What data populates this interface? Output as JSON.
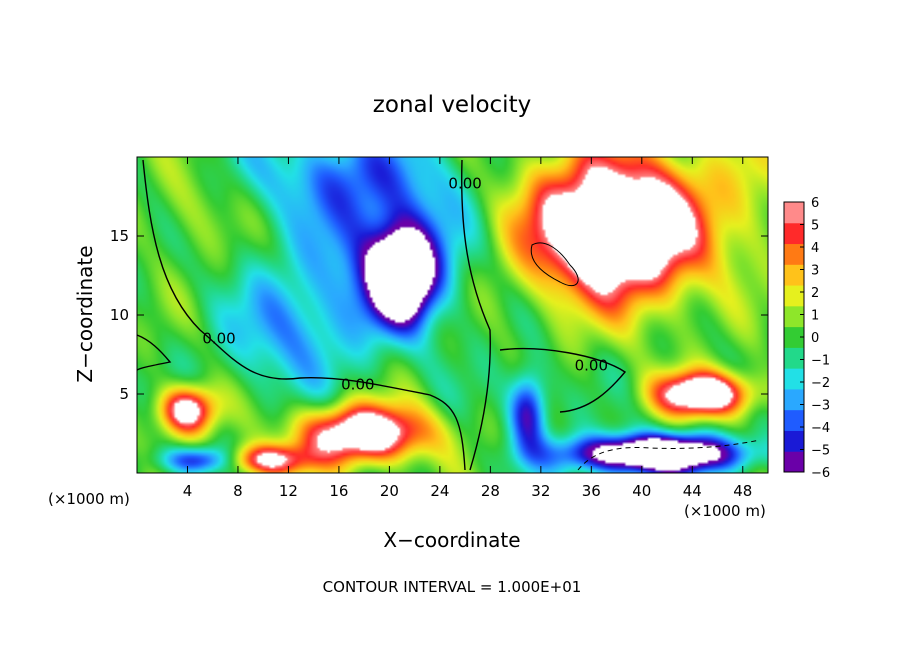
{
  "chart_data": {
    "type": "heatmap",
    "title": "zonal velocity",
    "xlabel": "X−coordinate",
    "ylabel": "Z−coordinate",
    "x_unit_label": "(×1000 m)",
    "y_unit_label": "(×1000 m)",
    "footer": "CONTOUR INTERVAL = 1.000E+01",
    "xlim": [
      0,
      50
    ],
    "ylim": [
      0,
      20
    ],
    "x_ticks": [
      4,
      8,
      12,
      16,
      20,
      24,
      28,
      32,
      36,
      40,
      44,
      48
    ],
    "y_ticks": [
      5,
      10,
      15
    ],
    "colorbar": {
      "ticks": [
        6,
        5,
        4,
        3,
        2,
        1,
        0,
        -1,
        -2,
        -3,
        -4,
        -5,
        -6
      ],
      "range": [
        -6,
        6
      ],
      "colors": [
        "#6a00a8",
        "#1a1ad6",
        "#1f5cff",
        "#2aa8ff",
        "#22e0e6",
        "#22d98a",
        "#33cc33",
        "#8ee62a",
        "#e6f01e",
        "#ffc21a",
        "#ff7a14",
        "#ff2a2a",
        "#ff8a8a",
        "#ffffff"
      ],
      "out_of_range_color": "#ffffff"
    },
    "contour_labels": [
      {
        "text": "0.00",
        "x": 6.5,
        "z": 8.2
      },
      {
        "text": "0.00",
        "x": 17.5,
        "z": 5.3
      },
      {
        "text": "0.00",
        "x": 26.0,
        "z": 18.0
      },
      {
        "text": "0.00",
        "x": 36.0,
        "z": 6.5
      }
    ],
    "field_features": [
      {
        "kind": "max",
        "x": 38,
        "z": 15.5,
        "sx": 7.0,
        "sz": 4.5,
        "amp": 11
      },
      {
        "kind": "min",
        "x": 21,
        "z": 12.5,
        "sx": 2.5,
        "sz": 2.8,
        "amp": -10
      },
      {
        "kind": "min",
        "x": 20,
        "z": 14.0,
        "sx": 6.0,
        "sz": 5.0,
        "amp": -4
      },
      {
        "kind": "min",
        "x": 16,
        "z": 19.0,
        "sx": 8.0,
        "sz": 3.0,
        "amp": -3
      },
      {
        "kind": "min",
        "x": 12,
        "z": 9.0,
        "sx": 5.0,
        "sz": 4.0,
        "amp": -3
      },
      {
        "kind": "max",
        "x": 4,
        "z": 4.0,
        "sx": 2.2,
        "sz": 1.5,
        "amp": 8
      },
      {
        "kind": "max",
        "x": 18,
        "z": 2.5,
        "sx": 5.0,
        "sz": 1.8,
        "amp": 9
      },
      {
        "kind": "max",
        "x": 10,
        "z": 0.8,
        "sx": 3.5,
        "sz": 1.0,
        "amp": 7
      },
      {
        "kind": "max",
        "x": 45,
        "z": 5.0,
        "sx": 3.8,
        "sz": 1.4,
        "amp": 9
      },
      {
        "kind": "min",
        "x": 41,
        "z": 1.2,
        "sx": 7.0,
        "sz": 1.2,
        "amp": -11
      },
      {
        "kind": "min",
        "x": 31,
        "z": 4.0,
        "sx": 1.5,
        "sz": 2.5,
        "amp": -6
      },
      {
        "kind": "min",
        "x": 5,
        "z": 0.8,
        "sx": 3.0,
        "sz": 0.9,
        "amp": -6
      },
      {
        "kind": "max",
        "x": 49,
        "z": 18.0,
        "sx": 3.0,
        "sz": 4.0,
        "amp": 1.5
      },
      {
        "kind": "max",
        "x": 4,
        "z": 17.0,
        "sx": 3.0,
        "sz": 3.0,
        "amp": 1.5
      }
    ]
  }
}
